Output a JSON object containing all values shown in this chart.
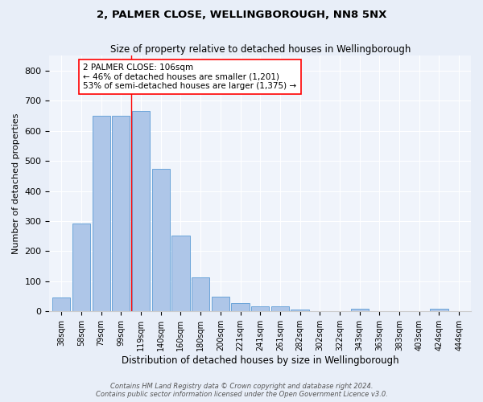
{
  "title1": "2, PALMER CLOSE, WELLINGBOROUGH, NN8 5NX",
  "title2": "Size of property relative to detached houses in Wellingborough",
  "xlabel": "Distribution of detached houses by size in Wellingborough",
  "ylabel": "Number of detached properties",
  "bar_labels": [
    "38sqm",
    "58sqm",
    "79sqm",
    "99sqm",
    "119sqm",
    "140sqm",
    "160sqm",
    "180sqm",
    "200sqm",
    "221sqm",
    "241sqm",
    "261sqm",
    "282sqm",
    "302sqm",
    "322sqm",
    "343sqm",
    "363sqm",
    "383sqm",
    "403sqm",
    "424sqm",
    "444sqm"
  ],
  "bar_values": [
    47,
    293,
    651,
    651,
    667,
    474,
    252,
    112,
    50,
    28,
    18,
    17,
    5,
    1,
    0,
    8,
    0,
    0,
    0,
    8,
    0
  ],
  "bar_color": "#aec6e8",
  "bar_edge_color": "#5b9bd5",
  "vline_color": "red",
  "annotation_text": "2 PALMER CLOSE: 106sqm\n← 46% of detached houses are smaller (1,201)\n53% of semi-detached houses are larger (1,375) →",
  "annotation_box_color": "white",
  "annotation_box_edge_color": "red",
  "ylim": [
    0,
    850
  ],
  "yticks": [
    0,
    100,
    200,
    300,
    400,
    500,
    600,
    700,
    800
  ],
  "footnote": "Contains HM Land Registry data © Crown copyright and database right 2024.\nContains public sector information licensed under the Open Government Licence v3.0.",
  "bg_color": "#e8eef8",
  "plot_bg_color": "#f0f4fb"
}
